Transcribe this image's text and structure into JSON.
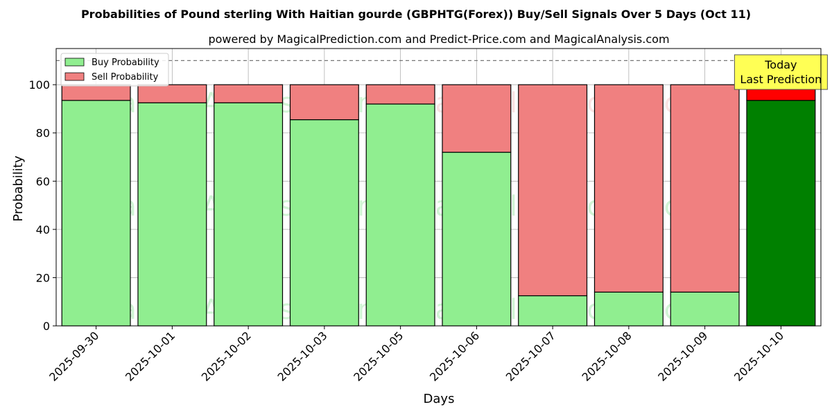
{
  "chart_data": {
    "type": "bar",
    "stacked": true,
    "title": "Probabilities of Pound sterling With Haitian gourde (GBPHTG(Forex)) Buy/Sell Signals Over 5 Days (Oct 11)",
    "subtitle": "powered by MagicalPrediction.com and Predict-Price.com and MagicalAnalysis.com",
    "xlabel": "Days",
    "ylabel": "Probability",
    "ylim": [
      0,
      115
    ],
    "yticks": [
      0,
      20,
      40,
      60,
      80,
      100
    ],
    "grid": true,
    "legend_position": "top-left",
    "reference_line": 110,
    "categories": [
      "2025-09-30",
      "2025-10-01",
      "2025-10-02",
      "2025-10-03",
      "2025-10-05",
      "2025-10-06",
      "2025-10-07",
      "2025-10-08",
      "2025-10-09",
      "2025-10-10"
    ],
    "series": [
      {
        "name": "Buy Probability",
        "color": "#90ee90",
        "values": [
          93.5,
          92.5,
          92.5,
          85.5,
          92.0,
          72.0,
          12.5,
          14.0,
          14.0,
          93.5
        ]
      },
      {
        "name": "Sell Probability",
        "color": "#f08080",
        "values": [
          6.5,
          7.5,
          7.5,
          14.5,
          8.0,
          28.0,
          87.5,
          86.0,
          86.0,
          6.5
        ]
      }
    ],
    "highlight": {
      "index": 9,
      "buy_color": "#008000",
      "sell_color": "#ff0000"
    },
    "annotation": {
      "lines": [
        "Today",
        "Last Prediction"
      ],
      "bg": "#ffff55"
    },
    "watermarks": [
      {
        "text": "MagicalAnalysis.com",
        "color": "#2ecc40"
      },
      {
        "text": "MagicalPrediction.com",
        "color": "#e67e7e"
      },
      {
        "text": "MagicalAnalysis.com",
        "color": "#2ecc40"
      },
      {
        "text": "MagicalPrediction.com",
        "color": "#2ecc40"
      },
      {
        "text": "MagicalAnalysis.com",
        "color": "#2ecc40"
      },
      {
        "text": "MagicalPrediction.com",
        "color": "#2ecc40"
      }
    ]
  }
}
